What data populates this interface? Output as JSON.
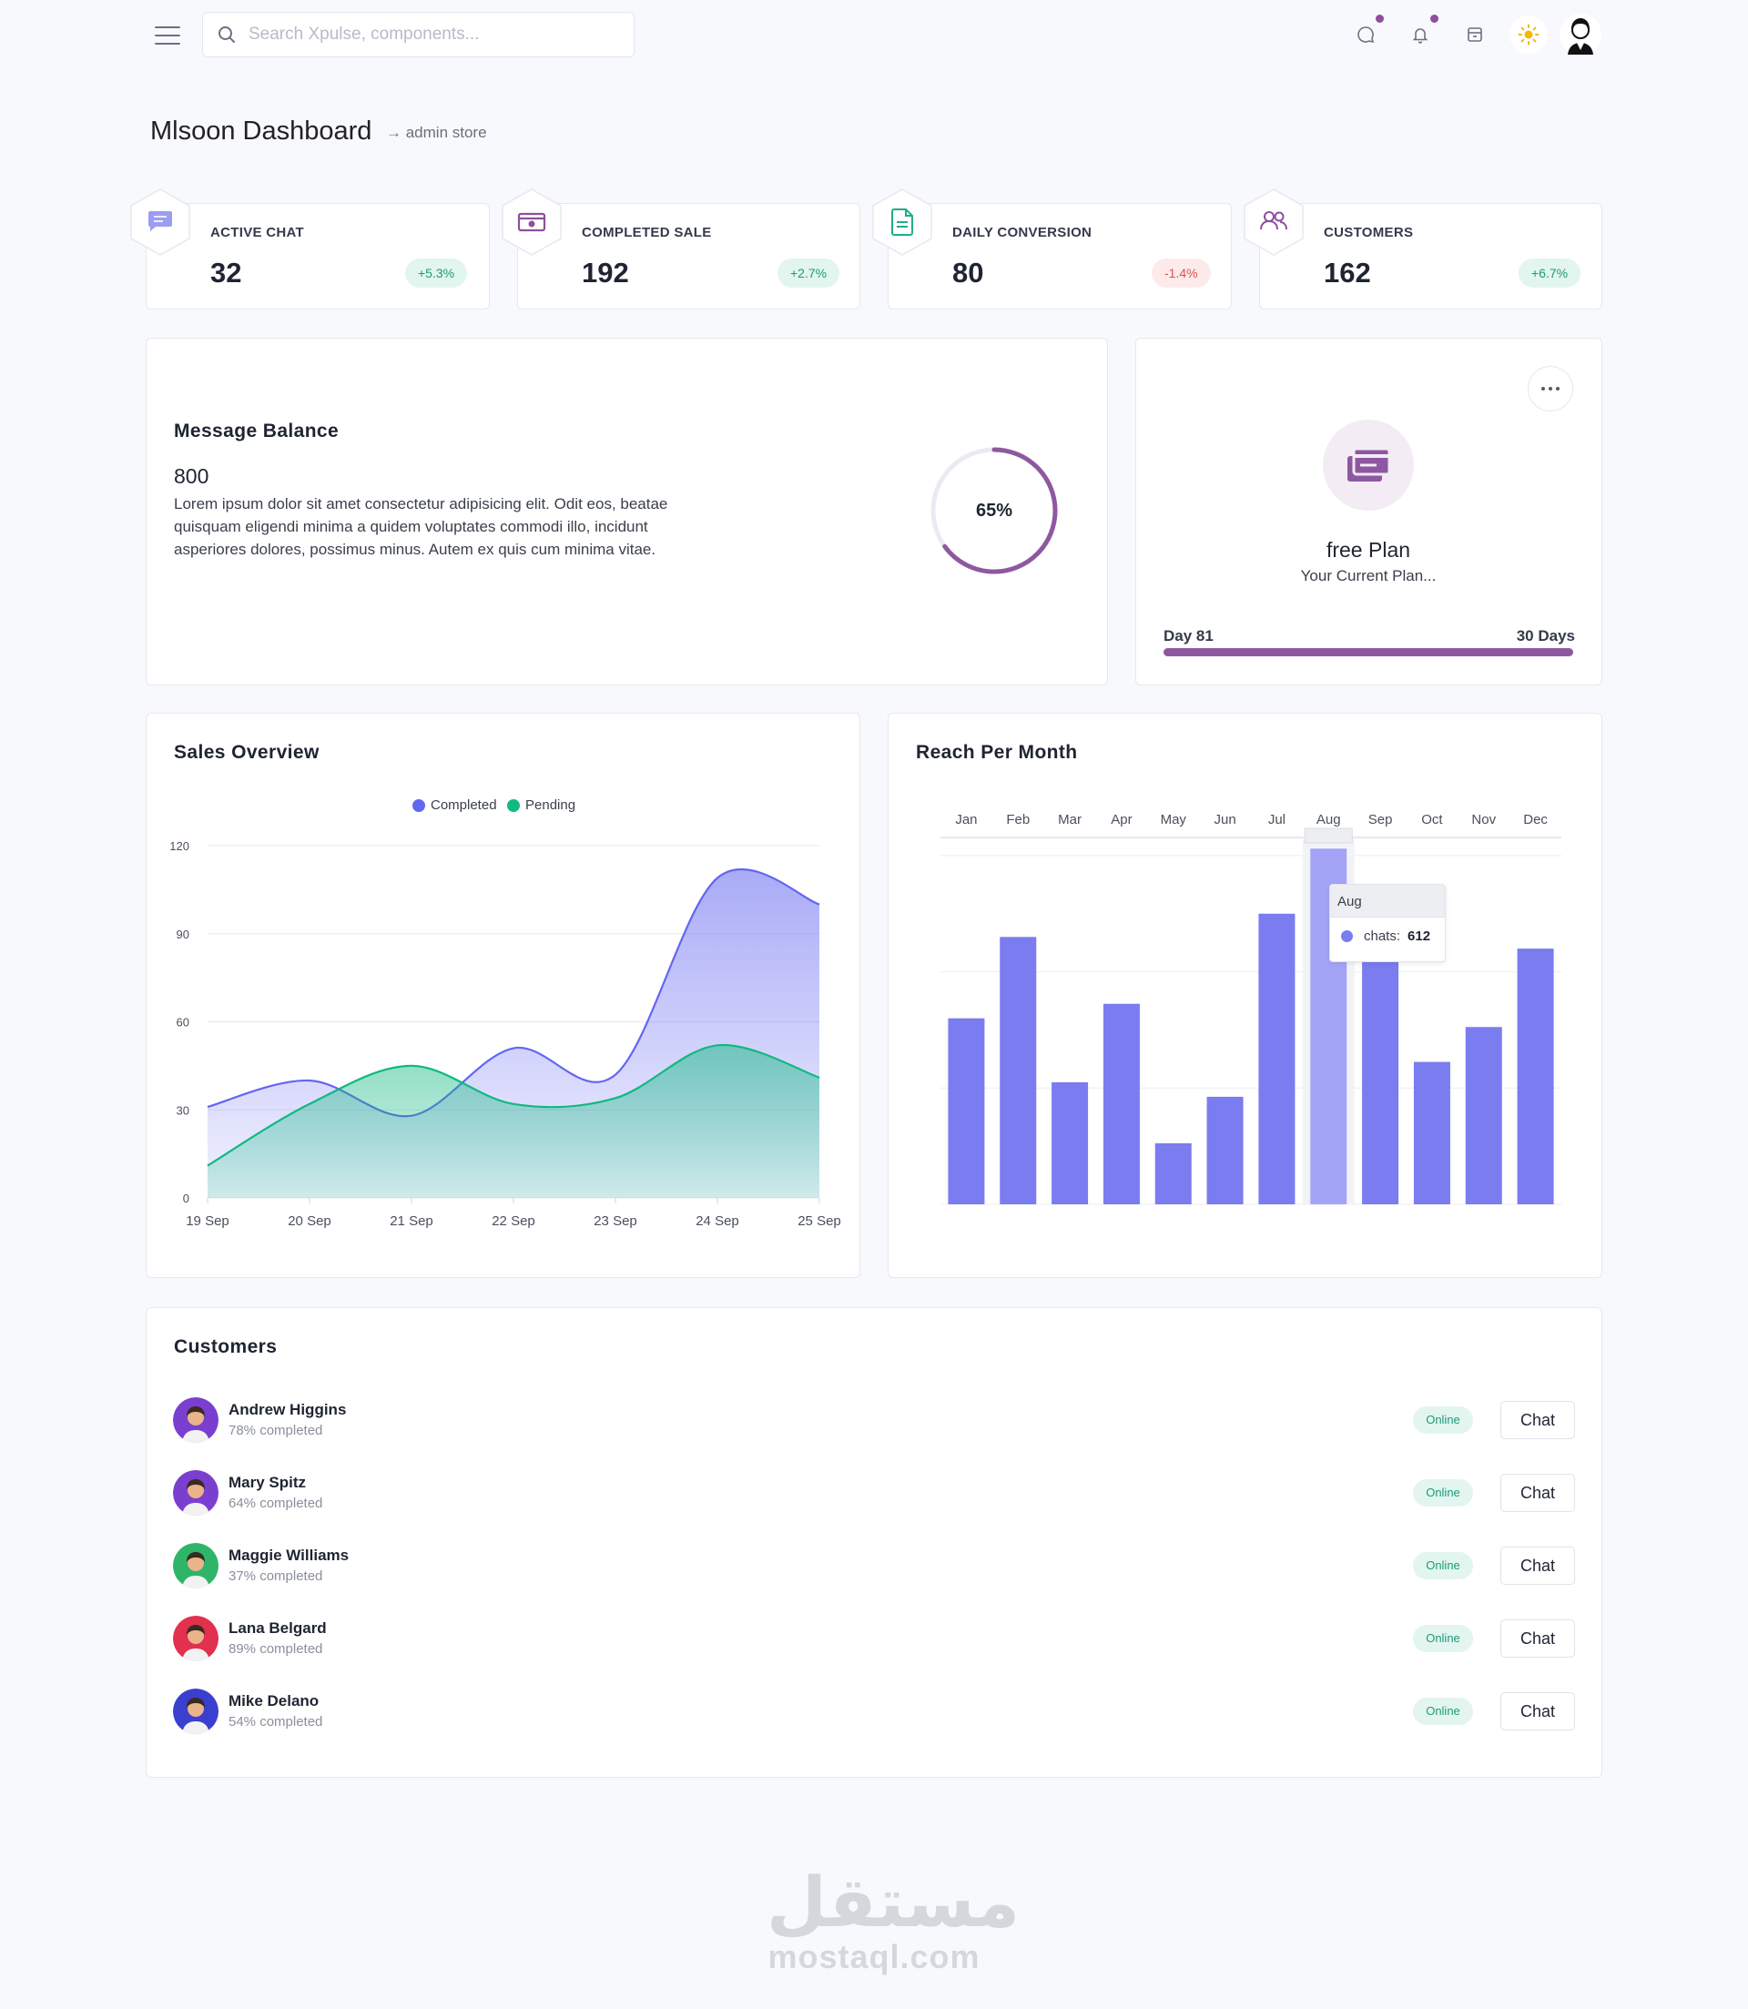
{
  "topbar": {
    "search_placeholder": "Search Xpulse, components...",
    "icons": [
      "menu-icon",
      "search-icon",
      "chat-bubble-icon",
      "bell-icon",
      "store-icon",
      "sun-icon",
      "user-avatar"
    ]
  },
  "header": {
    "title": "Mlsoon Dashboard",
    "breadcrumb": "→ admin store"
  },
  "stats": [
    {
      "label": "ACTIVE CHAT",
      "value": "32",
      "change": "+5.3%",
      "trend": "up",
      "icon": "chat-icon",
      "icon_color": "#7b7de8"
    },
    {
      "label": "COMPLETED SALE",
      "value": "192",
      "change": "+2.7%",
      "trend": "up",
      "icon": "money-icon",
      "icon_color": "#8e4f9c"
    },
    {
      "label": "DAILY CONVERSION",
      "value": "80",
      "change": "-1.4%",
      "trend": "down",
      "icon": "document-icon",
      "icon_color": "#1fae85"
    },
    {
      "label": "CUSTOMERS",
      "value": "162",
      "change": "+6.7%",
      "trend": "up",
      "icon": "users-icon",
      "icon_color": "#8e4f9c"
    }
  ],
  "message_balance": {
    "title": "Message Balance",
    "count": "800",
    "description": "Lorem ipsum dolor sit amet consectetur adipisicing elit. Odit eos, beatae quisquam eligendi minima a quidem voluptates commodi illo, incidunt asperiores dolores, possimus minus. Autem ex quis cum minima vitae.",
    "percent_label": "65%",
    "percent": 65
  },
  "plan": {
    "name": "free Plan",
    "subtitle": "Your Current Plan...",
    "day_label": "Day 81",
    "total_label": "30 Days",
    "progress_fraction": 1.0
  },
  "sales_overview": {
    "title": "Sales Overview"
  },
  "reach": {
    "title": "Reach Per Month",
    "tooltip": {
      "month": "Aug",
      "series": "chats:",
      "value": "612"
    }
  },
  "chart_data": [
    {
      "type": "area",
      "title": "Sales Overview",
      "categories": [
        "19 Sep",
        "20 Sep",
        "21 Sep",
        "22 Sep",
        "23 Sep",
        "24 Sep",
        "25 Sep"
      ],
      "ylim": [
        0,
        120
      ],
      "yticks": [
        0,
        30,
        60,
        90,
        120
      ],
      "legend": "top-center",
      "series": [
        {
          "name": "Completed",
          "color": "#6366f1",
          "values": [
            31,
            40,
            28,
            51,
            42,
            109,
            100
          ]
        },
        {
          "name": "Pending",
          "color": "#10b981",
          "values": [
            11,
            32,
            45,
            32,
            34,
            52,
            41
          ]
        }
      ]
    },
    {
      "type": "bar",
      "title": "Reach Per Month",
      "categories": [
        "Jan",
        "Feb",
        "Mar",
        "Apr",
        "May",
        "Jun",
        "Jul",
        "Aug",
        "Sep",
        "Oct",
        "Nov",
        "Dec"
      ],
      "series": [
        {
          "name": "chats",
          "color": "#7a7cf0",
          "values": [
            320,
            460,
            210,
            345,
            105,
            185,
            500,
            612,
            450,
            245,
            305,
            440
          ]
        }
      ],
      "highlight": "Aug",
      "ylim": [
        0,
        650
      ],
      "yticks": [
        0,
        200,
        400,
        600
      ],
      "grid": true,
      "xaxis_position": "top"
    }
  ],
  "customers": {
    "title": "Customers",
    "status_label": "Online",
    "chat_label": "Chat",
    "items": [
      {
        "name": "Andrew Higgins",
        "progress": "78% completed",
        "avatar_bg": "#7b3fd0"
      },
      {
        "name": "Mary Spitz",
        "progress": "64% completed",
        "avatar_bg": "#7b3fd0"
      },
      {
        "name": "Maggie Williams",
        "progress": "37% completed",
        "avatar_bg": "#2fb56a"
      },
      {
        "name": "Lana Belgard",
        "progress": "89% completed",
        "avatar_bg": "#e2304f"
      },
      {
        "name": "Mike Delano",
        "progress": "54% completed",
        "avatar_bg": "#3b3fd0"
      }
    ]
  },
  "watermark": {
    "arabic": "مستقل",
    "latin": "mostaql.com"
  }
}
